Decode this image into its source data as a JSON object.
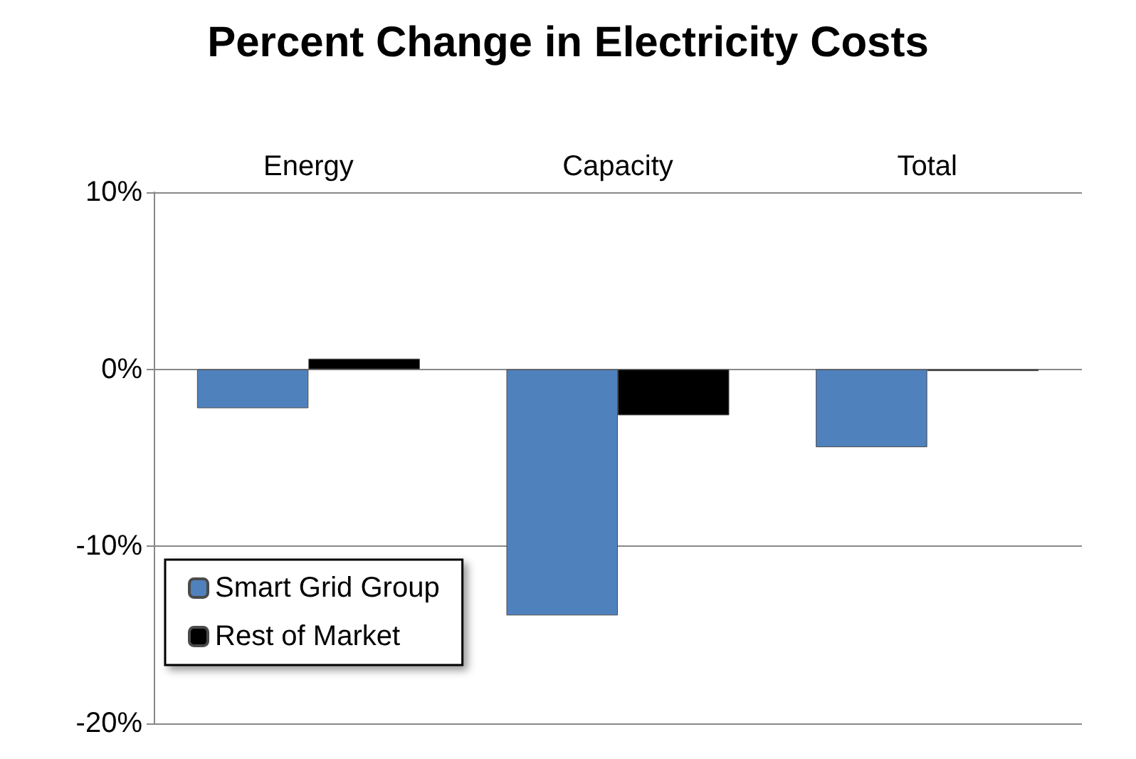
{
  "chart_data": {
    "type": "bar",
    "title": "Percent Change in Electricity Costs",
    "categories": [
      "Energy",
      "Capacity",
      "Total"
    ],
    "series": [
      {
        "name": "Smart Grid Group",
        "color": "#4f81bd",
        "values": [
          -2.2,
          -13.9,
          -4.4
        ]
      },
      {
        "name": "Rest of Market",
        "color": "#000000",
        "values": [
          0.6,
          -2.6,
          -0.1
        ]
      }
    ],
    "ylim": [
      -20,
      10
    ],
    "yticks": [
      {
        "value": 10,
        "label": "10%"
      },
      {
        "value": 0,
        "label": "0%"
      },
      {
        "value": -10,
        "label": "-10%"
      },
      {
        "value": -20,
        "label": "-20%"
      }
    ],
    "grid": "y",
    "legend": "bottom left"
  }
}
